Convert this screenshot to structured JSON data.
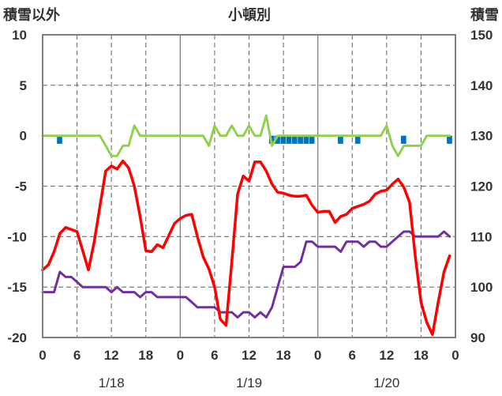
{
  "chart_data": {
    "type": "line",
    "title": "小頓別",
    "left_axis_label": "積雪以外",
    "right_axis_label": "積雪",
    "left_axis": {
      "min": -20,
      "max": 10,
      "ticks": [
        "10",
        "5",
        "0",
        "-5",
        "-10",
        "-15",
        "-20"
      ]
    },
    "right_axis": {
      "min": 90,
      "max": 150,
      "ticks": [
        "150",
        "140",
        "130",
        "120",
        "110",
        "100",
        "90"
      ]
    },
    "x_axis": {
      "hours_total": 72,
      "tick_labels": [
        "0",
        "6",
        "12",
        "18",
        "0",
        "6",
        "12",
        "18",
        "0",
        "6",
        "12",
        "18",
        "0"
      ],
      "date_labels": [
        "1/18",
        "1/19",
        "1/20"
      ]
    },
    "grid": true,
    "series": [
      {
        "key": "temperature",
        "color": "#ff0000",
        "axis": "left",
        "x": [
          0,
          1,
          2,
          3,
          4,
          5,
          6,
          7,
          8,
          9,
          10,
          11,
          12,
          13,
          14,
          15,
          16,
          17,
          18,
          19,
          20,
          21,
          22,
          23,
          24,
          25,
          26,
          27,
          28,
          29,
          30,
          31,
          32,
          33,
          34,
          35,
          36,
          37,
          38,
          39,
          40,
          41,
          42,
          43,
          44,
          45,
          46,
          47,
          48,
          49,
          50,
          51,
          52,
          53,
          54,
          55,
          56,
          57,
          58,
          59,
          60,
          61,
          62,
          63,
          64,
          65,
          66,
          67,
          68,
          69,
          70,
          71
        ],
        "values": [
          -13.3,
          -12.8,
          -11.5,
          -9.7,
          -9.1,
          -9.3,
          -9.5,
          -11.4,
          -13.3,
          -10.5,
          -7.0,
          -3.5,
          -3.0,
          -3.3,
          -2.5,
          -3.2,
          -5.0,
          -8.0,
          -11.4,
          -11.5,
          -10.8,
          -11.1,
          -9.9,
          -8.7,
          -8.2,
          -7.9,
          -7.8,
          -10.0,
          -12.0,
          -13.2,
          -15.0,
          -18.2,
          -18.8,
          -12.5,
          -5.8,
          -4.0,
          -4.5,
          -2.6,
          -2.6,
          -3.5,
          -4.8,
          -5.6,
          -5.7,
          -5.9,
          -6.0,
          -6.0,
          -5.9,
          -6.9,
          -7.6,
          -7.5,
          -7.5,
          -8.6,
          -8.0,
          -7.8,
          -7.2,
          -7.0,
          -6.8,
          -6.5,
          -5.8,
          -5.5,
          -5.4,
          -4.8,
          -4.3,
          -5.1,
          -6.6,
          -12.0,
          -16.5,
          -18.5,
          -19.7,
          -16.5,
          -13.5,
          -11.9
        ]
      },
      {
        "key": "wind",
        "color": "#7030a0",
        "axis": "left",
        "x": [
          0,
          1,
          2,
          3,
          4,
          5,
          6,
          7,
          8,
          9,
          10,
          11,
          12,
          13,
          14,
          15,
          16,
          17,
          18,
          19,
          20,
          21,
          22,
          23,
          24,
          25,
          26,
          27,
          28,
          29,
          30,
          31,
          32,
          33,
          34,
          35,
          36,
          37,
          38,
          39,
          40,
          41,
          42,
          43,
          44,
          45,
          46,
          47,
          48,
          49,
          50,
          51,
          52,
          53,
          54,
          55,
          56,
          57,
          58,
          59,
          60,
          61,
          62,
          63,
          64,
          65,
          66,
          67,
          68,
          69,
          70,
          71
        ],
        "values": [
          -15.5,
          -15.5,
          -15.5,
          -13.5,
          -14.0,
          -14.0,
          -14.5,
          -15.0,
          -15.0,
          -15.0,
          -15.0,
          -15.0,
          -15.5,
          -15.0,
          -15.5,
          -15.5,
          -15.5,
          -16.0,
          -15.5,
          -15.5,
          -16.0,
          -16.0,
          -16.0,
          -16.0,
          -16.0,
          -16.0,
          -16.5,
          -17.0,
          -17.0,
          -17.0,
          -17.0,
          -17.5,
          -17.5,
          -17.5,
          -18.0,
          -17.5,
          -17.5,
          -18.0,
          -17.5,
          -18.0,
          -17.0,
          -15.0,
          -13.0,
          -13.0,
          -13.0,
          -12.5,
          -10.5,
          -10.5,
          -11.0,
          -11.0,
          -11.0,
          -11.0,
          -11.5,
          -10.5,
          -10.5,
          -10.5,
          -11.0,
          -10.5,
          -10.5,
          -11.0,
          -11.0,
          -10.5,
          -10.0,
          -9.5,
          -9.5,
          -10.0,
          -10.0,
          -10.0,
          -10.0,
          -10.0,
          -9.5,
          -10.0
        ]
      },
      {
        "key": "precipitation",
        "color": "#92d050",
        "axis": "left",
        "x": [
          0,
          1,
          2,
          3,
          4,
          5,
          6,
          7,
          8,
          9,
          10,
          11,
          12,
          13,
          14,
          15,
          16,
          17,
          18,
          19,
          20,
          21,
          22,
          23,
          24,
          25,
          26,
          27,
          28,
          29,
          30,
          31,
          32,
          33,
          34,
          35,
          36,
          37,
          38,
          39,
          40,
          41,
          42,
          43,
          44,
          45,
          46,
          47,
          48,
          49,
          50,
          51,
          52,
          53,
          54,
          55,
          56,
          57,
          58,
          59,
          60,
          61,
          62,
          63,
          64,
          65,
          66,
          67,
          68,
          69,
          70,
          71
        ],
        "values": [
          0,
          0,
          0,
          0,
          0,
          0,
          0,
          0,
          0,
          0,
          0,
          -1,
          -2,
          -2,
          -1,
          -1,
          1,
          0,
          0,
          0,
          0,
          0,
          0,
          0,
          0,
          0,
          0,
          0,
          0,
          -1,
          1,
          0,
          0,
          1,
          0,
          0,
          1,
          0,
          0,
          2,
          -1,
          0,
          0,
          0,
          0,
          0,
          0,
          0,
          0,
          0,
          0,
          0,
          0,
          0,
          0,
          0,
          0,
          0,
          0,
          0,
          1,
          -1,
          -2,
          -1,
          -1,
          -1,
          -1,
          0,
          0,
          0,
          0,
          0
        ]
      }
    ],
    "bars": {
      "key": "snowfall",
      "color": "#0070c0",
      "axis": "left",
      "x": [
        3,
        40,
        41,
        42,
        43,
        44,
        45,
        46,
        47,
        52,
        55,
        63,
        71
      ],
      "values": [
        -0.8,
        -0.8,
        -0.8,
        -0.8,
        -0.8,
        -0.8,
        -0.8,
        -0.8,
        -0.8,
        -0.8,
        -0.8,
        -0.8,
        -0.8
      ]
    }
  }
}
